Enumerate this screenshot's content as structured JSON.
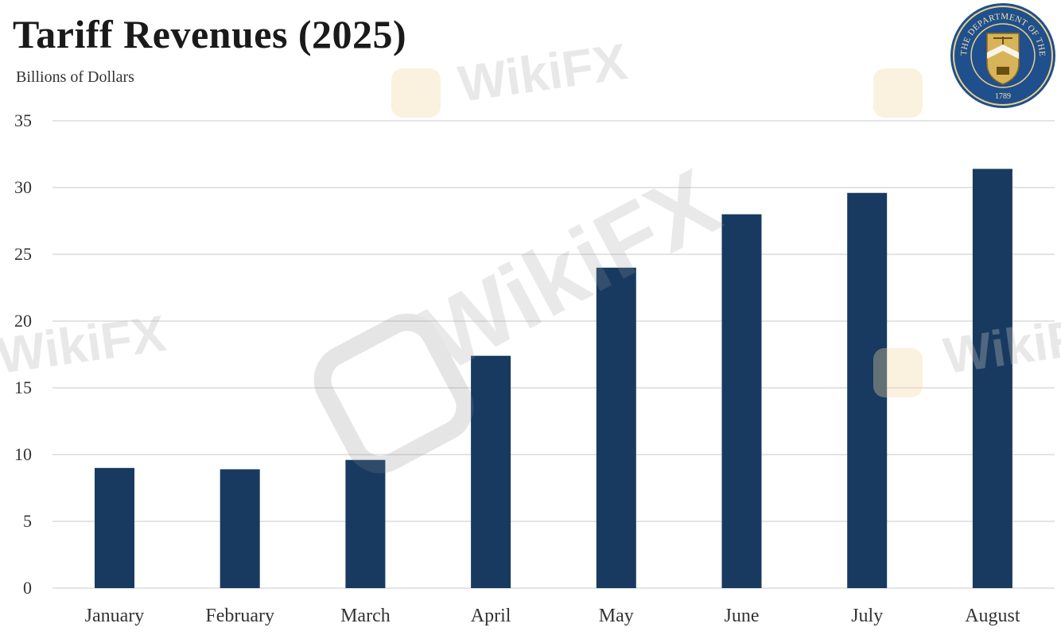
{
  "header": {
    "title": "Tariff Revenues (2025)",
    "subtitle": "Billions of Dollars"
  },
  "seal": {
    "text_top": "THE DEPARTMENT OF THE TREASURY",
    "year": "1789"
  },
  "watermark_text": "WikiFX",
  "colors": {
    "bar": "#183a60",
    "grid": "#dcdcdc",
    "text": "#333333",
    "seal_blue": "#1f4f8c",
    "seal_gold": "#d7b45a",
    "watermark": "#cfcfcf"
  },
  "chart_data": {
    "type": "bar",
    "title": "Tariff Revenues (2025)",
    "ylabel": "Billions of Dollars",
    "xlabel": "",
    "categories": [
      "January",
      "February",
      "March",
      "April",
      "May",
      "June",
      "July",
      "August"
    ],
    "values": [
      9.0,
      8.9,
      9.6,
      17.4,
      24.0,
      28.0,
      29.6,
      31.4
    ],
    "ylim": [
      0,
      35
    ],
    "yticks": [
      0,
      5,
      10,
      15,
      20,
      25,
      30,
      35
    ],
    "grid": true,
    "legend": "none"
  }
}
